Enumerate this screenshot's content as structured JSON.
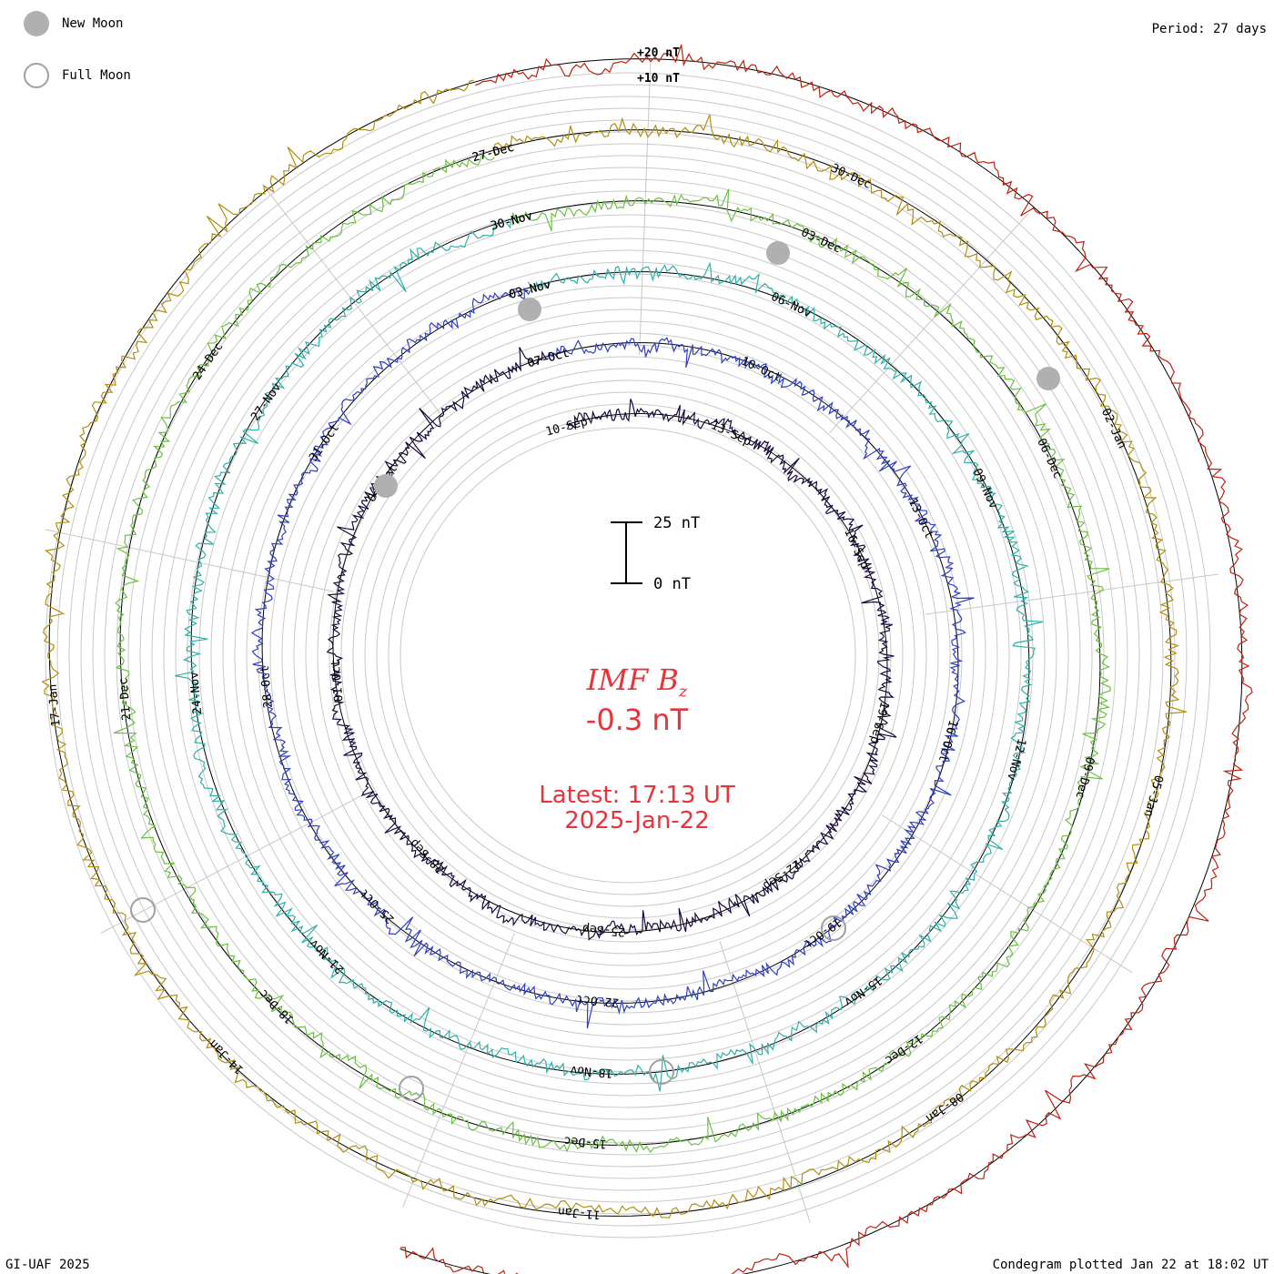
{
  "header": {
    "new_moon_label": "New Moon",
    "full_moon_label": "Full Moon",
    "period_label": "Period: 27 days"
  },
  "footer": {
    "credit": "GI-UAF 2025",
    "plotted": "Condegram plotted Jan 22 at 18:02 UT"
  },
  "center": {
    "quantity": "IMF B",
    "subscript": "z",
    "value": "-0.3 nT",
    "latest": "Latest: 17:13 UT",
    "date": "2025-Jan-22"
  },
  "scale": {
    "plus20": "+20 nT",
    "plus10": "+10 nT",
    "bar_top": "25 nT",
    "bar_bottom": "0 nT"
  },
  "colors": {
    "accent": "#e8333a",
    "grid": "#c8c8c8",
    "baseline": "#000000",
    "new_moon": "#b0b0b0",
    "full_moon": "#a0a0a0",
    "series": [
      "#1a0a3c",
      "#3040c0",
      "#30b0a8",
      "#6cc040",
      "#b09010",
      "#c02010"
    ]
  },
  "chart_data": {
    "type": "line",
    "title": "IMF Bz",
    "period_days": 27,
    "ylabel": "nT",
    "rings": [
      {
        "date_labels": [
          "10-Sep",
          "13-Sep",
          "16-Sep",
          "19-Sep",
          "22-Sep",
          "25-Sep",
          "28-Sep",
          "01-Oct",
          "04-Oct",
          "07-Oct"
        ]
      },
      {
        "date_labels": [
          "07-Oct",
          "10-Oct",
          "13-Oct",
          "16-Oct",
          "19-Oct",
          "22-Oct",
          "25-Oct",
          "28-Oct",
          "31-Oct",
          "03-Nov"
        ]
      },
      {
        "date_labels": [
          "03-Nov",
          "06-Nov",
          "09-Nov",
          "12-Nov",
          "15-Nov",
          "18-Nov",
          "21-Nov",
          "24-Nov",
          "27-Nov",
          "30-Nov"
        ]
      },
      {
        "date_labels": [
          "30-Nov",
          "03-Dec",
          "06-Dec",
          "09-Dec",
          "12-Dec",
          "15-Dec",
          "18-Dec",
          "21-Dec",
          "24-Dec",
          "27-Dec"
        ]
      },
      {
        "date_labels": [
          "27-Dec",
          "30-Dec",
          "02-Jan",
          "05-Jan",
          "08-Jan",
          "11-Jan",
          "14-Jan",
          "17-Jan"
        ]
      },
      {
        "date_labels": []
      }
    ],
    "new_moon_markers": [
      "30-Nov",
      "31-Dec",
      "01-Oct",
      "02-Nov"
    ],
    "full_moon_markers": [
      "15-Nov",
      "14-Jan",
      "15-Dec",
      "17-Oct"
    ],
    "grid": true
  }
}
